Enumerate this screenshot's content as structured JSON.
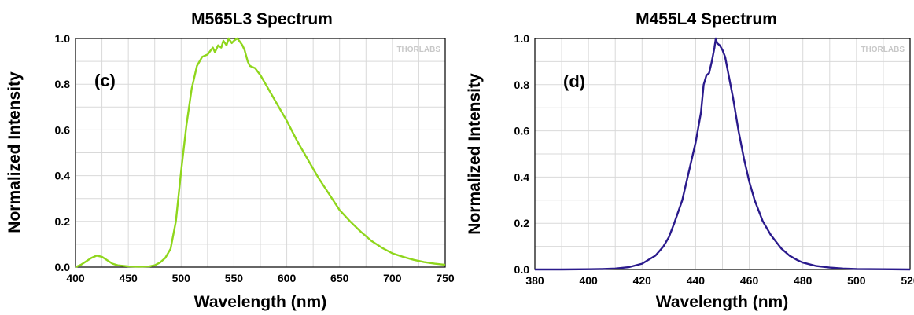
{
  "chart_data": [
    {
      "type": "line",
      "title": "M565L3 Spectrum",
      "xlabel": "Wavelength (nm)",
      "ylabel": "Normalized Intensity",
      "panel_label": "(c)",
      "watermark": "THORLABS",
      "xlim": [
        400,
        750
      ],
      "ylim": [
        0,
        1.0
      ],
      "xticks": [
        "400",
        "450",
        "500",
        "550",
        "600",
        "650",
        "700",
        "750"
      ],
      "yticks": [
        "0.0",
        "0.2",
        "0.4",
        "0.6",
        "0.8",
        "1.0"
      ],
      "grid": true,
      "color": "#8fd61c",
      "series": [
        {
          "x": [
            400,
            405,
            410,
            415,
            420,
            425,
            430,
            435,
            440,
            450,
            460,
            470,
            475,
            480,
            485,
            490,
            495,
            500,
            505,
            510,
            515,
            520,
            525,
            530,
            532,
            535,
            538,
            540,
            543,
            545,
            548,
            550,
            553,
            555,
            558,
            560,
            563,
            565,
            570,
            575,
            580,
            590,
            600,
            610,
            620,
            630,
            640,
            650,
            660,
            670,
            680,
            690,
            700,
            710,
            720,
            730,
            740,
            750
          ],
          "y": [
            0.0,
            0.01,
            0.025,
            0.04,
            0.05,
            0.045,
            0.03,
            0.015,
            0.008,
            0.003,
            0.002,
            0.003,
            0.008,
            0.02,
            0.04,
            0.08,
            0.2,
            0.42,
            0.62,
            0.78,
            0.88,
            0.92,
            0.93,
            0.96,
            0.94,
            0.97,
            0.96,
            0.99,
            0.97,
            1.0,
            0.98,
            0.99,
            1.0,
            0.99,
            0.97,
            0.95,
            0.9,
            0.88,
            0.87,
            0.84,
            0.8,
            0.72,
            0.64,
            0.55,
            0.47,
            0.39,
            0.32,
            0.25,
            0.2,
            0.155,
            0.115,
            0.085,
            0.06,
            0.045,
            0.032,
            0.022,
            0.015,
            0.01
          ]
        }
      ]
    },
    {
      "type": "line",
      "title": "M455L4 Spectrum",
      "xlabel": "Wavelength (nm)",
      "ylabel": "Normalized Intensity",
      "panel_label": "(d)",
      "watermark": "THORLABS",
      "xlim": [
        380,
        520
      ],
      "ylim": [
        0,
        1.0
      ],
      "xticks": [
        "380",
        "400",
        "420",
        "440",
        "460",
        "480",
        "500",
        "520"
      ],
      "yticks": [
        "0.0",
        "0.2",
        "0.4",
        "0.6",
        "0.8",
        "1.0"
      ],
      "grid": true,
      "color": "#2a1a8c",
      "series": [
        {
          "x": [
            380,
            390,
            400,
            405,
            410,
            415,
            420,
            425,
            428,
            430,
            432,
            435,
            438,
            440,
            442,
            443,
            444,
            445,
            446,
            447,
            447.5,
            448,
            449,
            450,
            451,
            452,
            454,
            456,
            458,
            460,
            462,
            465,
            468,
            470,
            472,
            475,
            478,
            480,
            485,
            490,
            495,
            500,
            510,
            520
          ],
          "y": [
            0.0,
            0.0,
            0.001,
            0.002,
            0.004,
            0.01,
            0.025,
            0.06,
            0.1,
            0.14,
            0.2,
            0.3,
            0.45,
            0.55,
            0.68,
            0.8,
            0.84,
            0.85,
            0.9,
            0.96,
            1.0,
            0.98,
            0.97,
            0.95,
            0.92,
            0.86,
            0.74,
            0.6,
            0.48,
            0.38,
            0.3,
            0.21,
            0.15,
            0.12,
            0.09,
            0.06,
            0.04,
            0.03,
            0.015,
            0.008,
            0.004,
            0.002,
            0.001,
            0.0
          ]
        }
      ]
    }
  ]
}
